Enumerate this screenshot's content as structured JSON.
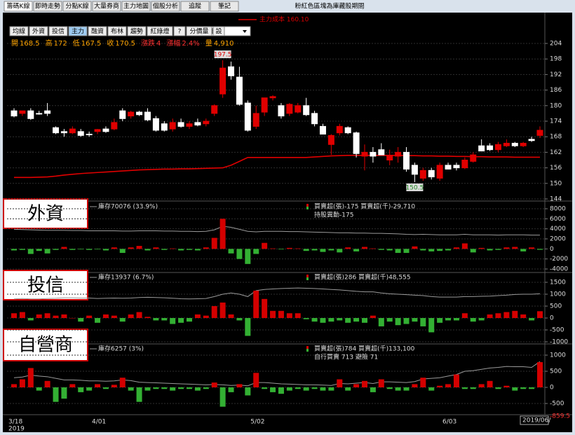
{
  "header": {
    "tabs": [
      "籌碼K線",
      "即時走勢",
      "分點K線",
      "大量券商",
      "主力地圖",
      "個股分析",
      "追蹤",
      "筆記"
    ],
    "title": "粉紅色區塊為庫藏股期間",
    "toolbar": [
      "均線",
      "外資",
      "投信",
      "主力",
      "融資",
      "布林",
      "趨勢",
      "紅綠燈",
      "?",
      "分價量",
      "設"
    ],
    "interval": "日線"
  },
  "info": [
    {
      "label": "開",
      "value": 168.5,
      "color": "#ffa500"
    },
    {
      "label": "高",
      "value": 172,
      "color": "#ffa500"
    },
    {
      "label": "低",
      "value": 167.5,
      "color": "#ffa500"
    },
    {
      "label": "收",
      "value": 170.5,
      "color": "#ffa500"
    },
    {
      "label": "漲跌",
      "value": 4,
      "color": "#ff3030"
    },
    {
      "label": "漲幅",
      "value": "2.4%",
      "color": "#ff3030"
    },
    {
      "label": "量",
      "value": "4,910",
      "color": "#ffa500"
    }
  ],
  "chart_data": [
    {
      "type": "candlestick",
      "up_color": "#e00000",
      "down_color": "#ffffff",
      "extremes_labeled": true,
      "categories": [
        "3/18",
        null,
        null,
        null,
        null,
        null,
        null,
        null,
        null,
        null,
        "4/01",
        null,
        null,
        null,
        null,
        null,
        null,
        null,
        null,
        null,
        null,
        null,
        null,
        null,
        null,
        null,
        null,
        null,
        null,
        "5/02",
        null,
        null,
        null,
        null,
        null,
        null,
        null,
        null,
        null,
        null,
        null,
        null,
        null,
        null,
        null,
        null,
        null,
        null,
        null,
        null,
        null,
        null,
        "6/03",
        null,
        null,
        null,
        null,
        null,
        null,
        null,
        null,
        null,
        null,
        null
      ],
      "year_label": "2019",
      "open": [
        178,
        177,
        178,
        177,
        178,
        171.5,
        170,
        169.5,
        170,
        169,
        170,
        171,
        171,
        178,
        176,
        177.5,
        177.5,
        175,
        173,
        171,
        173.5,
        172,
        173.5,
        173,
        177,
        184.5,
        195,
        191,
        181,
        172,
        177.5,
        183,
        180,
        177,
        177.5,
        180,
        177,
        172,
        165,
        169.5,
        171.5,
        169.5,
        160.5,
        162,
        163,
        159,
        160.5,
        162,
        157,
        152,
        155,
        152,
        157,
        157,
        156,
        158.5,
        164.5,
        164.5,
        163,
        164.5,
        165.5,
        164.5,
        167,
        168.5
      ],
      "high": [
        179,
        178,
        179,
        178,
        181,
        172,
        171,
        172,
        171,
        170,
        171,
        172,
        175,
        179,
        178,
        178,
        179,
        176,
        174,
        175,
        175,
        174,
        175,
        175,
        180.5,
        197.5,
        197,
        195,
        182,
        180,
        183,
        184,
        181,
        181,
        181,
        183,
        178,
        173,
        169,
        173,
        172,
        170,
        165,
        164,
        165.5,
        163,
        164,
        164,
        158,
        156,
        156,
        158,
        158,
        158,
        160,
        162,
        167,
        165.5,
        166,
        167,
        166,
        166,
        168,
        172
      ],
      "low": [
        175.5,
        176,
        174.5,
        176.5,
        176,
        169,
        168,
        169,
        168,
        168,
        169,
        169.5,
        170.5,
        174,
        175,
        176,
        174,
        170,
        170,
        170,
        171.5,
        171,
        172,
        172,
        176,
        183,
        190,
        180,
        170,
        171,
        176,
        182,
        175,
        176,
        177,
        176,
        172,
        169,
        161,
        168.5,
        169,
        160,
        155,
        158,
        161,
        157,
        158,
        154.5,
        150.5,
        151,
        151.5,
        151,
        155.5,
        155,
        155.5,
        158,
        162.5,
        162.5,
        162,
        164,
        164,
        164,
        166,
        167.5
      ],
      "close": [
        176,
        178,
        175,
        176.8,
        177,
        169.5,
        169.5,
        171,
        168.5,
        168.8,
        170.8,
        170,
        173.5,
        175,
        177.5,
        176.5,
        174.5,
        170.5,
        170.5,
        173.5,
        172,
        173,
        172.5,
        174,
        180,
        194.5,
        191.5,
        180.5,
        170.5,
        177,
        183,
        183.5,
        176,
        180.5,
        180,
        176.5,
        173,
        169,
        168.5,
        172,
        169.5,
        161.5,
        162,
        160.5,
        161,
        160.5,
        162,
        155.5,
        153.5,
        155,
        152.5,
        157,
        155.5,
        156,
        159,
        161,
        162.5,
        163,
        165,
        165.5,
        164.5,
        165.5,
        166.5,
        170.5
      ],
      "series": [
        {
          "name": "主力成本 160.10",
          "color": "#e00000",
          "values": [
            152.3,
            152.3,
            152.3,
            152.4,
            152.5,
            152.8,
            153.2,
            153.5,
            153.8,
            154,
            154.2,
            154.4,
            154.6,
            154.8,
            155,
            155.2,
            155.3,
            155.4,
            155.5,
            155.5,
            155.6,
            155.6,
            155.7,
            155.8,
            155.9,
            156,
            157,
            158.5,
            160,
            160,
            160,
            160,
            160,
            160,
            160,
            160,
            160.2,
            160.4,
            160.6,
            160.7,
            160.8,
            160.8,
            160.8,
            160.8,
            160.8,
            160.8,
            160.8,
            160.7,
            160.7,
            160.6,
            160.6,
            160.5,
            160.5,
            160.4,
            160.4,
            160.3,
            160.3,
            160.2,
            160.2,
            160.2,
            160.1,
            160.1,
            160.1,
            160.1
          ]
        }
      ],
      "ylim": [
        144,
        204
      ],
      "yticks": [
        144,
        150,
        156,
        162,
        168,
        174,
        180,
        186,
        192,
        198,
        204
      ],
      "grid": true
    },
    {
      "type": "bar",
      "title": "外資",
      "subtitle": "持股異動-175",
      "series": [
        {
          "name": "庫存70076 (33.9%)",
          "type": "line",
          "color": "#9a9a9a",
          "values": [
            3900,
            3850,
            3800,
            3750,
            3700,
            3700,
            3700,
            3650,
            3650,
            3600,
            3600,
            3600,
            3600,
            3550,
            3550,
            3600,
            3600,
            3600,
            3550,
            3550,
            3500,
            3500,
            3450,
            3500,
            3800,
            4500,
            4300,
            3900,
            3500,
            3400,
            3500,
            3500,
            3500,
            3450,
            3450,
            3400,
            3350,
            3300,
            3250,
            3200,
            3200,
            3150,
            3150,
            3100,
            3100,
            3050,
            3000,
            2900,
            2850,
            2900,
            2850,
            2800,
            2800,
            2800,
            2900,
            2800,
            2800,
            2800,
            2750,
            2800,
            2800,
            2800,
            2750,
            2750
          ]
        },
        {
          "name": "買賣超(張)-175 買賣超(千)-29,710",
          "type": "bar",
          "up_color": "#d40000",
          "down_color": "#33b033",
          "values": [
            -300,
            -200,
            -1000,
            -400,
            -900,
            -200,
            400,
            -200,
            -100,
            -200,
            -100,
            -300,
            300,
            -800,
            300,
            600,
            -300,
            300,
            -200,
            100,
            -300,
            -200,
            -300,
            300,
            2200,
            6000,
            -900,
            -2000,
            -3000,
            -1000,
            1200,
            100,
            -100,
            200,
            100,
            -400,
            -300,
            -600,
            -300,
            -700,
            300,
            -500,
            400,
            100,
            -200,
            -300,
            -800,
            -800,
            500,
            -300,
            -500,
            -400,
            -300,
            300,
            1100,
            -700,
            200,
            -300,
            -200,
            300,
            400,
            -500,
            300,
            -175
          ]
        }
      ],
      "ylim": [
        -4000,
        8000
      ],
      "yticks": [
        -4000,
        -2000,
        0,
        2000,
        4000,
        6000,
        8000
      ],
      "grid": true
    },
    {
      "type": "bar",
      "title": "投信",
      "series": [
        {
          "name": "庫存13937 (6.7%)",
          "type": "line",
          "color": "#9a9a9a",
          "values": [
            800,
            820,
            800,
            800,
            820,
            830,
            850,
            850,
            840,
            840,
            820,
            830,
            840,
            830,
            840,
            860,
            870,
            860,
            850,
            830,
            810,
            800,
            810,
            820,
            900,
            1000,
            1050,
            1000,
            900,
            1150,
            1200,
            1220,
            1240,
            1250,
            1260,
            1250,
            1240,
            1220,
            1200,
            1180,
            1150,
            1120,
            1100,
            1100,
            1050,
            1020,
            1000,
            980,
            960,
            940,
            900,
            880,
            880,
            880,
            900,
            900,
            910,
            920,
            940,
            960,
            990,
            1000,
            1000,
            1020
          ]
        },
        {
          "name": "買賣超(張)286 買賣超(千)48,555",
          "type": "bar",
          "up_color": "#d40000",
          "down_color": "#33b033",
          "values": [
            200,
            250,
            -100,
            150,
            200,
            100,
            150,
            0,
            -150,
            100,
            -200,
            150,
            100,
            -150,
            150,
            250,
            50,
            -100,
            -100,
            -250,
            -200,
            -150,
            150,
            100,
            500,
            650,
            150,
            -100,
            -750,
            1150,
            800,
            300,
            300,
            200,
            200,
            -50,
            -150,
            -200,
            -150,
            -100,
            -200,
            -150,
            -200,
            100,
            -350,
            -150,
            -300,
            -250,
            -150,
            -350,
            -600,
            -200,
            -100,
            -100,
            200,
            -150,
            -100,
            150,
            200,
            250,
            300,
            150,
            -100,
            286
          ]
        }
      ],
      "ylim": [
        -1000,
        1500
      ],
      "yticks": [
        -1000,
        -500,
        0,
        500,
        1000,
        1500
      ],
      "grid": true
    },
    {
      "type": "bar",
      "title": "自營商",
      "subtitle": "自行買賣 713 避險 71",
      "cursor_value": -859.5,
      "cursor_date": "2019/06/",
      "series": [
        {
          "name": "庫存6257 (3%)",
          "type": "line",
          "color": "#9a9a9a",
          "values": [
            300,
            320,
            380,
            350,
            330,
            280,
            230,
            230,
            220,
            200,
            200,
            190,
            200,
            230,
            210,
            160,
            150,
            140,
            130,
            120,
            110,
            100,
            90,
            80,
            90,
            80,
            60,
            70,
            50,
            150,
            150,
            130,
            110,
            100,
            90,
            80,
            80,
            70,
            60,
            120,
            110,
            130,
            150,
            120,
            170,
            170,
            160,
            150,
            180,
            260,
            280,
            300,
            350,
            400,
            500,
            520,
            560,
            600,
            620,
            650,
            640,
            640,
            620,
            800
          ]
        },
        {
          "name": "買賣超(張)784 買賣超(千)133,100",
          "type": "bar",
          "up_color": "#d40000",
          "down_color": "#33b033",
          "values": [
            100,
            250,
            600,
            -100,
            200,
            -450,
            -350,
            100,
            -150,
            -100,
            100,
            -50,
            80,
            300,
            -100,
            -450,
            -100,
            -50,
            -50,
            -100,
            -50,
            -50,
            -100,
            -50,
            150,
            -600,
            -150,
            100,
            -250,
            450,
            -50,
            -150,
            -200,
            -100,
            -50,
            -100,
            -50,
            -100,
            -100,
            250,
            -100,
            100,
            200,
            -150,
            250,
            -50,
            -100,
            -100,
            100,
            300,
            -100,
            50,
            100,
            400,
            -50,
            -50,
            100,
            200,
            -50,
            50,
            -100,
            -50,
            -50,
            784
          ]
        }
      ],
      "ylim": [
        -500,
        1000
      ],
      "yticks": [
        -500,
        0,
        500,
        1000
      ],
      "grid": true
    }
  ]
}
